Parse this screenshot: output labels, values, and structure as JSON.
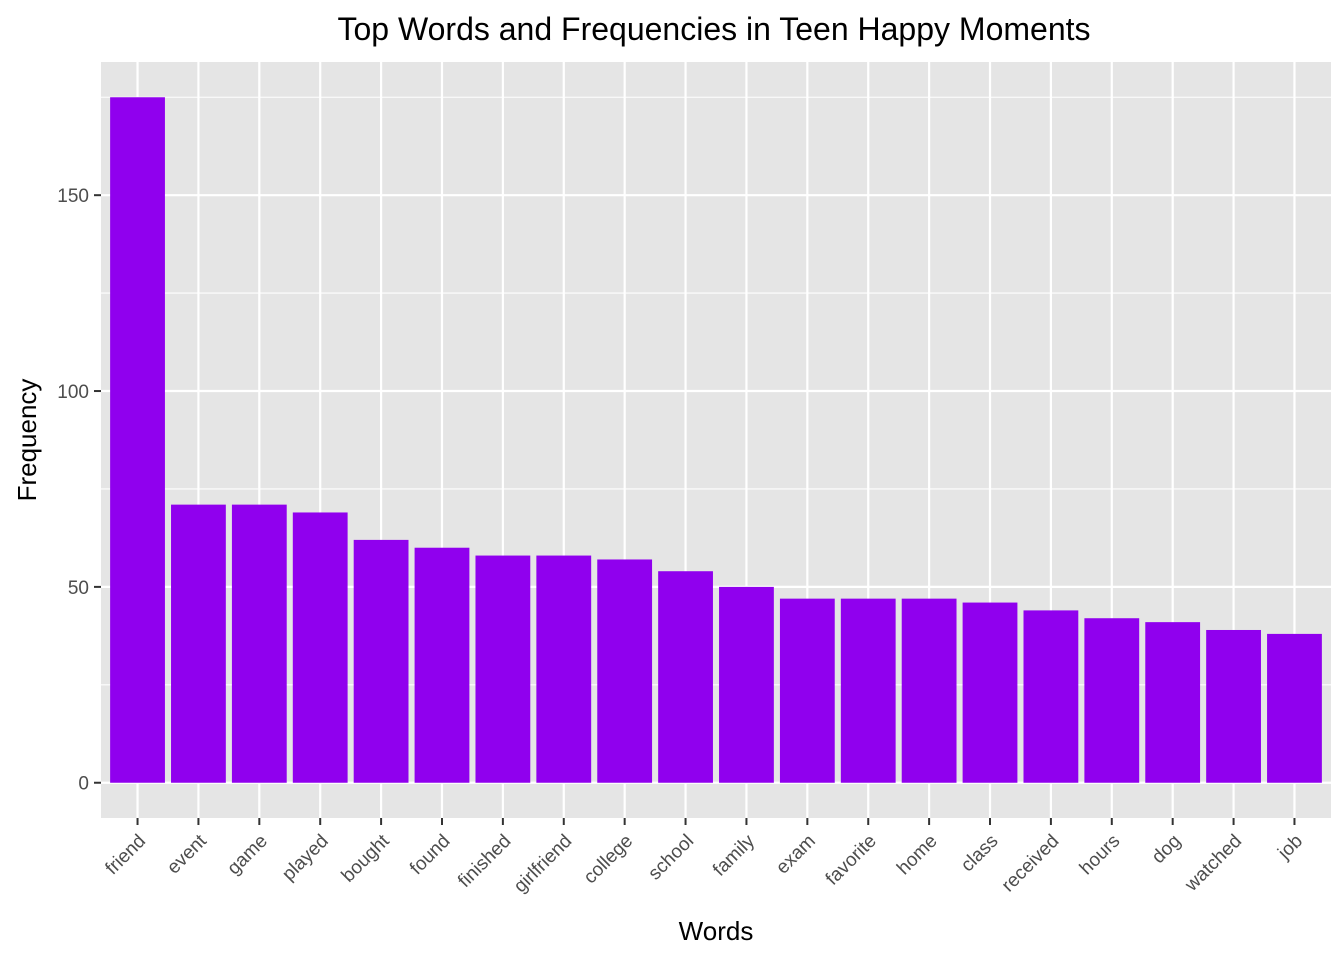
{
  "chart_data": {
    "type": "bar",
    "title": "Top Words and Frequencies in Teen Happy Moments",
    "xlabel": "Words",
    "ylabel": "Frequency",
    "categories": [
      "friend",
      "event",
      "game",
      "played",
      "bought",
      "found",
      "finished",
      "girlfriend",
      "college",
      "school",
      "family",
      "exam",
      "favorite",
      "home",
      "class",
      "received",
      "hours",
      "dog",
      "watched",
      "job"
    ],
    "values": [
      175,
      71,
      71,
      69,
      62,
      60,
      58,
      58,
      57,
      54,
      50,
      47,
      47,
      47,
      46,
      44,
      42,
      41,
      39,
      38
    ],
    "ylim": [
      -9,
      184
    ],
    "yticks": [
      0,
      50,
      100,
      150
    ],
    "ytick_labels": [
      "0",
      "50",
      "100",
      "150"
    ],
    "grid": true,
    "legend": "none",
    "colors": {
      "bar": "#9000ee",
      "panel_background": "#e5e5e5",
      "grid_line": "#ffffff",
      "tick_text": "#4d4d4d",
      "tick_mark": "#333333",
      "text": "#000000"
    }
  }
}
